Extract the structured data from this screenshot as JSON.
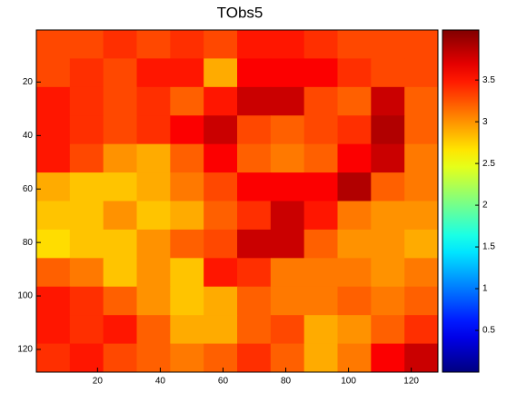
{
  "chart_data": {
    "type": "heatmap",
    "title": "TObs5",
    "colormap": "jet",
    "xlim": [
      0.5,
      128.5
    ],
    "ylim": [
      0.5,
      128.5
    ],
    "y_reversed": true,
    "xticks": [
      20,
      40,
      60,
      80,
      100,
      120
    ],
    "yticks": [
      20,
      40,
      60,
      80,
      100,
      120
    ],
    "clim": [
      0,
      4.1
    ],
    "cticks": [
      0.5,
      1,
      1.5,
      2,
      2.5,
      3,
      3.5
    ],
    "z": [
      [
        3.3,
        3.3,
        3.4,
        3.3,
        3.4,
        3.3,
        3.5,
        3.5,
        3.4,
        3.3,
        3.3,
        3.3
      ],
      [
        3.3,
        3.4,
        3.3,
        3.5,
        3.5,
        2.9,
        3.6,
        3.6,
        3.6,
        3.4,
        3.3,
        3.3
      ],
      [
        3.5,
        3.4,
        3.3,
        3.4,
        3.2,
        3.5,
        3.8,
        3.8,
        3.3,
        3.2,
        3.8,
        3.2
      ],
      [
        3.5,
        3.4,
        3.3,
        3.4,
        3.6,
        3.8,
        3.3,
        3.2,
        3.3,
        3.4,
        3.9,
        3.2
      ],
      [
        3.5,
        3.3,
        3.0,
        2.9,
        3.2,
        3.6,
        3.2,
        3.1,
        3.2,
        3.6,
        3.8,
        3.1
      ],
      [
        2.9,
        2.8,
        2.8,
        2.9,
        3.1,
        3.3,
        3.6,
        3.6,
        3.6,
        3.9,
        3.2,
        3.1
      ],
      [
        2.8,
        2.8,
        3.0,
        2.8,
        2.9,
        3.2,
        3.4,
        3.8,
        3.5,
        3.1,
        3.0,
        3.0
      ],
      [
        2.7,
        2.8,
        2.8,
        3.0,
        3.2,
        3.3,
        3.8,
        3.8,
        3.2,
        3.0,
        3.0,
        2.9
      ],
      [
        3.2,
        3.1,
        2.8,
        3.0,
        2.8,
        3.5,
        3.4,
        3.1,
        3.1,
        3.1,
        3.0,
        3.1
      ],
      [
        3.5,
        3.4,
        3.2,
        3.0,
        2.8,
        2.9,
        3.2,
        3.1,
        3.1,
        3.2,
        3.1,
        3.2
      ],
      [
        3.5,
        3.4,
        3.5,
        3.2,
        2.9,
        2.9,
        3.2,
        3.3,
        2.9,
        3.0,
        3.2,
        3.4
      ],
      [
        3.4,
        3.5,
        3.3,
        3.2,
        3.1,
        3.2,
        3.4,
        3.2,
        2.9,
        3.1,
        3.6,
        3.8
      ]
    ]
  }
}
